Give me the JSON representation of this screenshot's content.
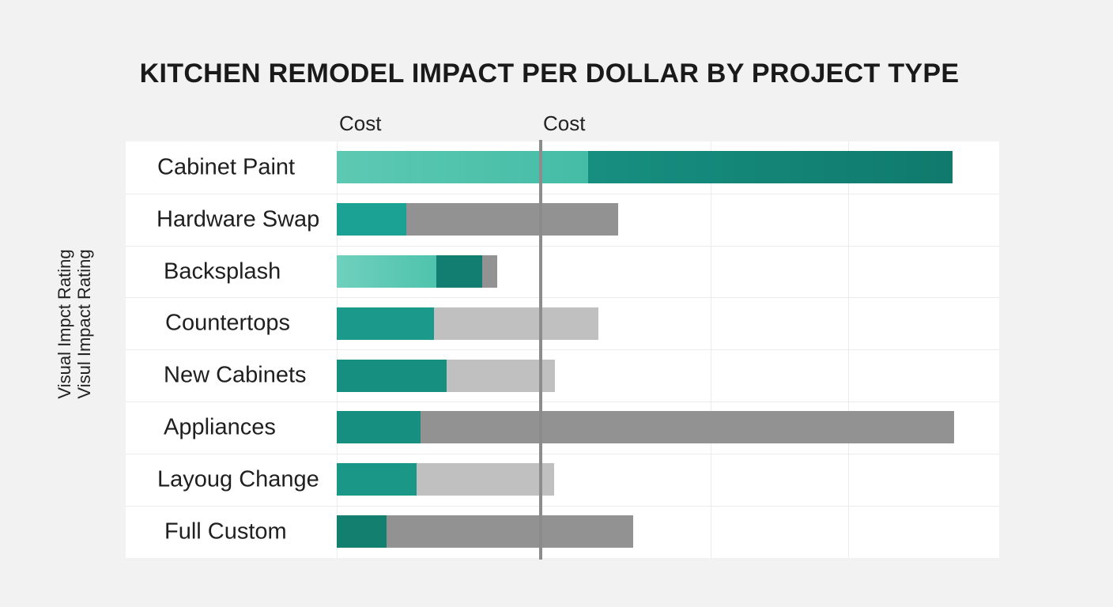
{
  "chart_data": {
    "type": "bar",
    "orientation": "horizontal",
    "stacked": true,
    "title": "KITCHEN REMODEL IMPACT PER DOLLAR BY PROJECT TYPE",
    "column_headers": [
      "Cost",
      "Cost"
    ],
    "ylabel": [
      "Visual Impct Rating",
      "Visul Impact Rating"
    ],
    "categories": [
      "Cabinet Paint",
      "Hardware Swap",
      "Backsplash",
      "Countertops",
      "New Cabinets",
      "Appliances",
      "Layoug Change",
      "Full Custom"
    ],
    "segments": [
      [
        {
          "value": 38,
          "color": "#5dc9b3",
          "gradient_to": "#45bca6"
        },
        {
          "value": 55,
          "color": "#178f80",
          "gradient_to": "#0f7a6d"
        }
      ],
      [
        {
          "value": 10.5,
          "color": "#1ca295"
        },
        {
          "value": 32,
          "color": "#929292"
        }
      ],
      [
        {
          "value": 15,
          "color": "#6fd0bd",
          "gradient_to": "#4fc3ad"
        },
        {
          "value": 7,
          "color": "#127e72"
        },
        {
          "value": 2.2,
          "color": "#929292"
        }
      ],
      [
        {
          "value": 14.7,
          "color": "#1b9a8c"
        },
        {
          "value": 24.8,
          "color": "#c0c0c0"
        }
      ],
      [
        {
          "value": 16.6,
          "color": "#178f80"
        },
        {
          "value": 16.3,
          "color": "#c0c0c0"
        }
      ],
      [
        {
          "value": 12.6,
          "color": "#178f80"
        },
        {
          "value": 80.6,
          "color": "#929292"
        }
      ],
      [
        {
          "value": 12,
          "color": "#1a9787"
        },
        {
          "value": 20.8,
          "color": "#c0c0c0"
        }
      ],
      [
        {
          "value": 7.5,
          "color": "#13806f"
        },
        {
          "value": 37.2,
          "color": "#929292"
        }
      ]
    ],
    "xlim": [
      0,
      100
    ],
    "reference_line": 30.8,
    "gridlines_x": [
      56.4,
      77.2
    ],
    "grid": true,
    "legend": "none"
  }
}
